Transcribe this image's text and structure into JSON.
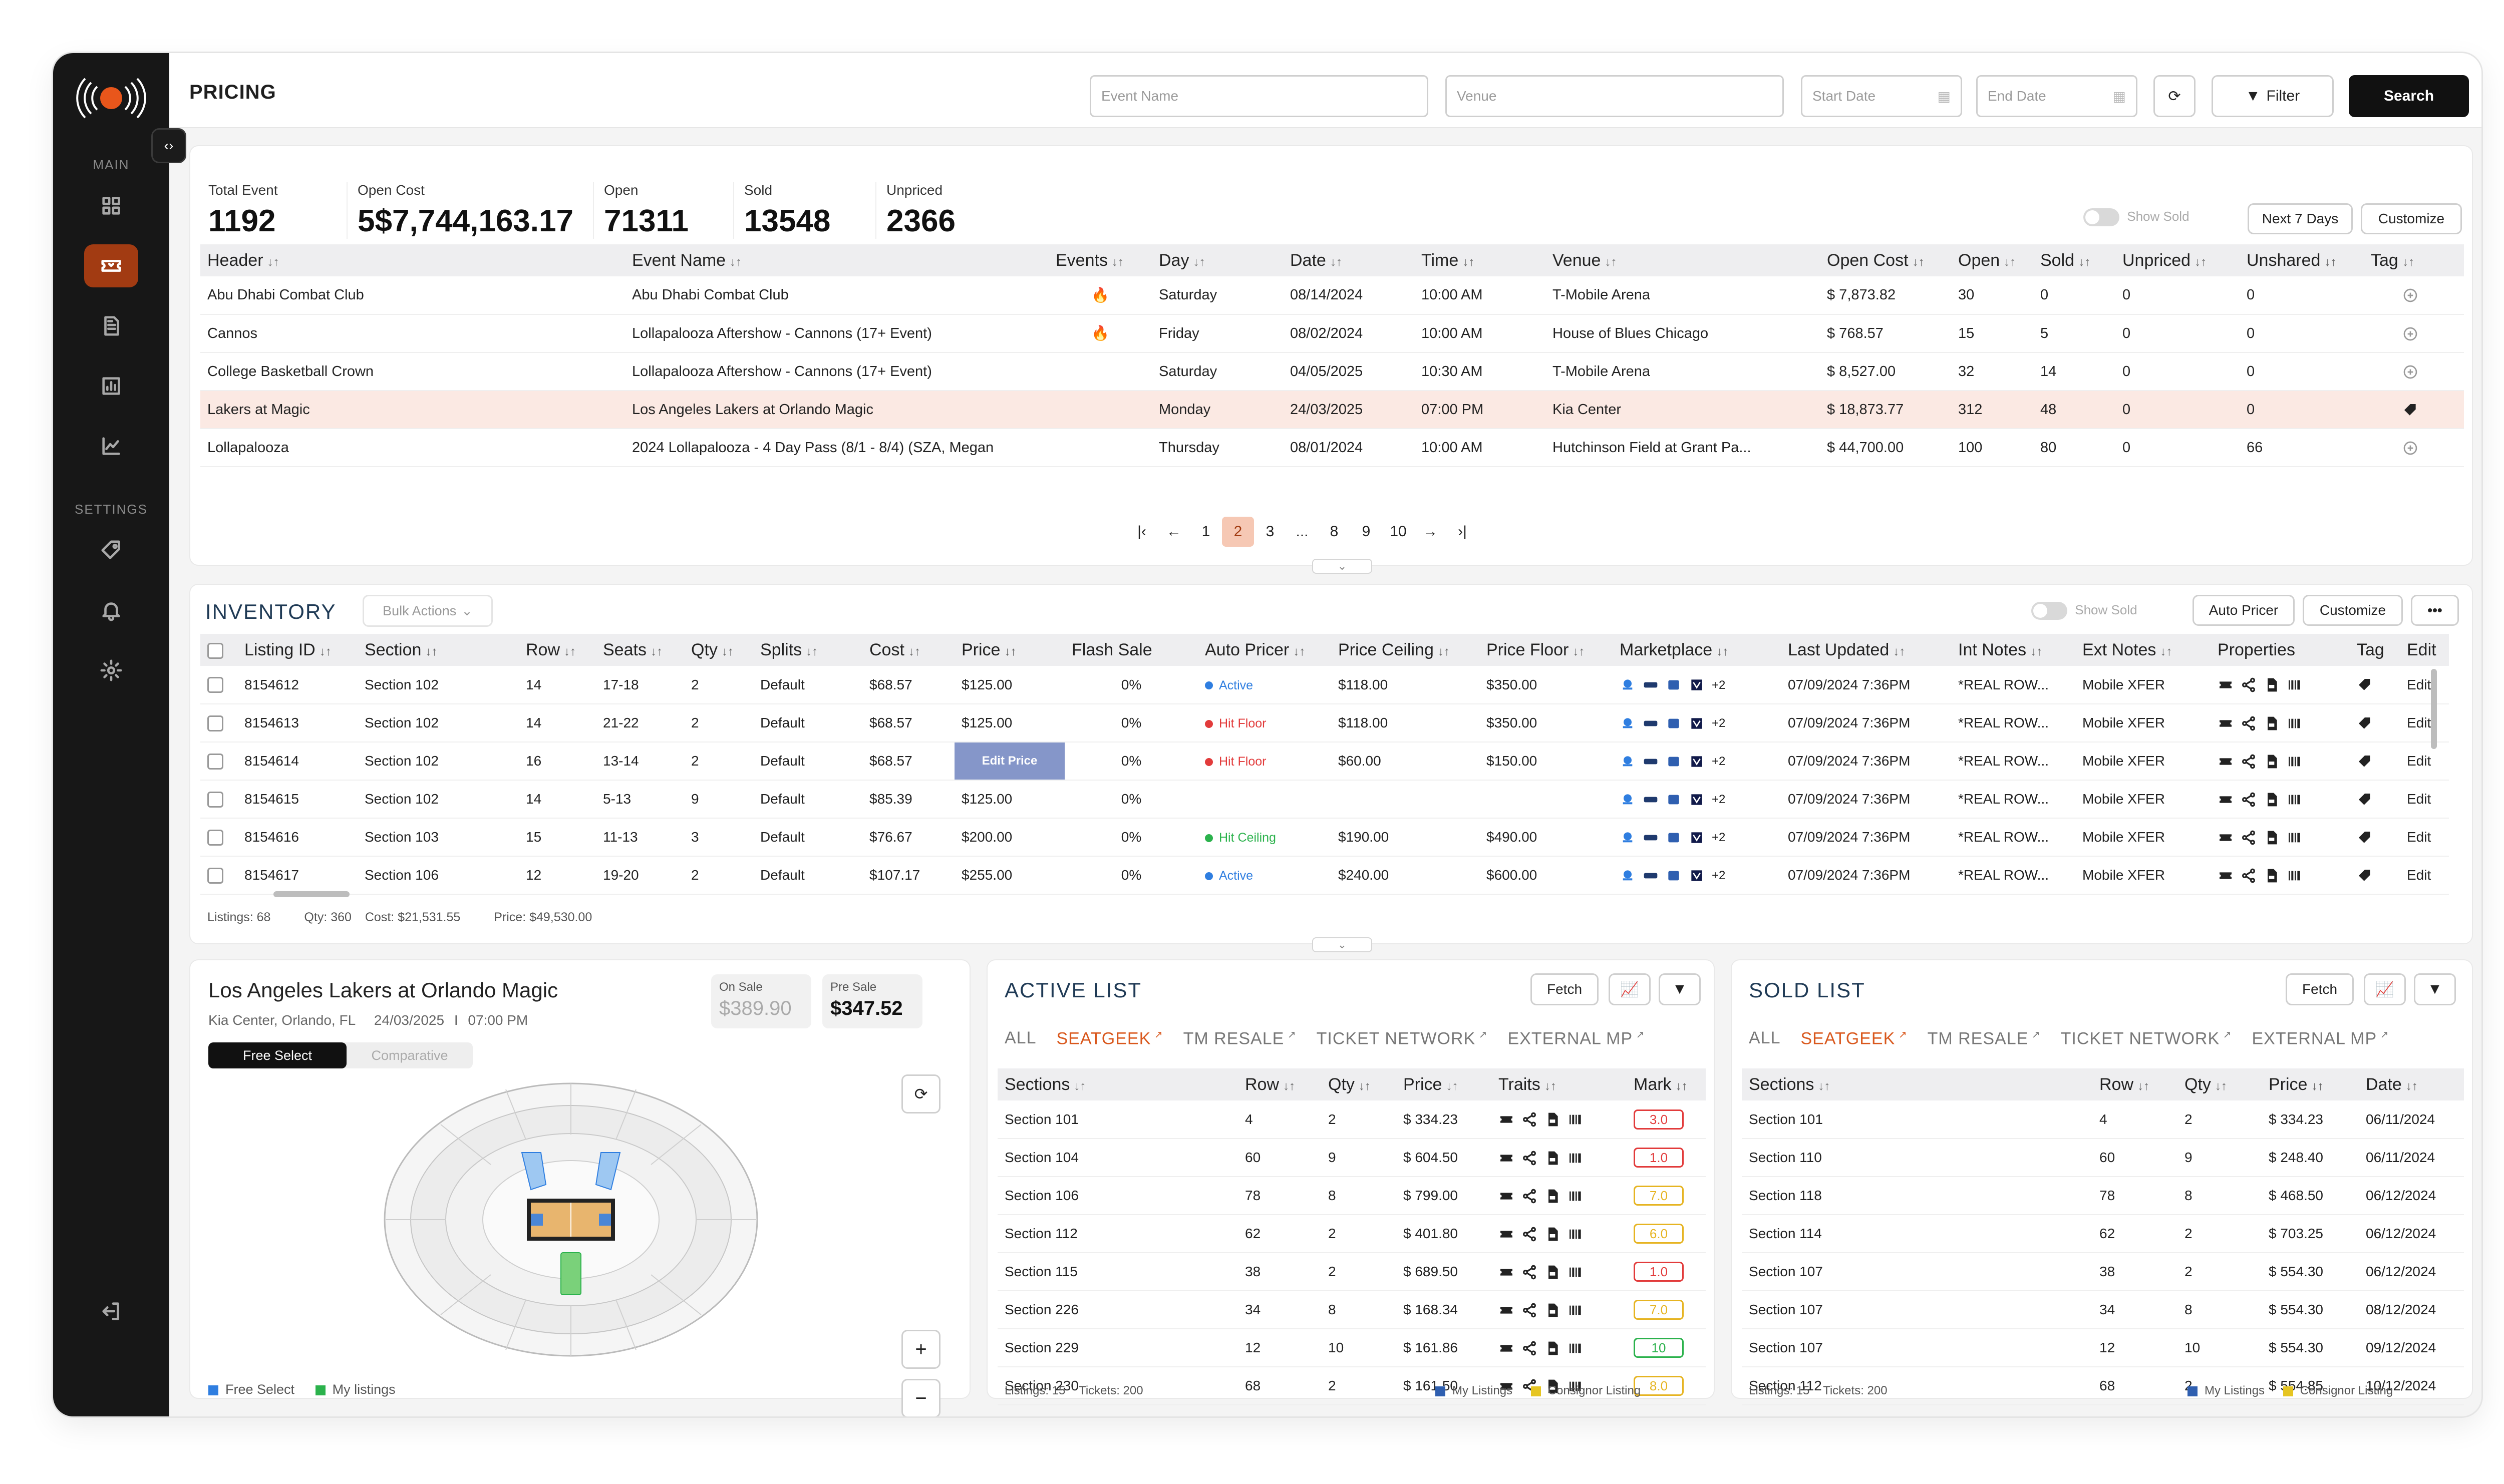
{
  "header": {
    "title": "PRICING",
    "event_placeholder": "Event Name",
    "venue_placeholder": "Venue",
    "start_date": "Start Date",
    "end_date": "End Date",
    "filter_label": "Filter",
    "search_label": "Search"
  },
  "sidebar": {
    "main_label": "MAIN",
    "settings_label": "SETTINGS"
  },
  "stats": [
    {
      "label": "Total Event",
      "value": "1192"
    },
    {
      "label": "Open Cost",
      "value": "5$7,744,163.17"
    },
    {
      "label": "Open",
      "value": "71311"
    },
    {
      "label": "Sold",
      "value": "13548"
    },
    {
      "label": "Unpriced",
      "value": "2366"
    }
  ],
  "pricing_controls": {
    "show_sold": "Show Sold",
    "next7": "Next 7 Days",
    "customize": "Customize"
  },
  "events_table": {
    "columns": [
      "Header",
      "Event Name",
      "Events",
      "Day",
      "Date",
      "Time",
      "Venue",
      "Open Cost",
      "Open",
      "Sold",
      "Unpriced",
      "Unshared",
      "Tag"
    ],
    "rows": [
      [
        "Abu Dhabi Combat Club",
        "Abu Dhabi Combat Club",
        "🔥",
        "Saturday",
        "08/14/2024",
        "10:00 AM",
        "T-Mobile Arena",
        "$ 7,873.82",
        "30",
        "0",
        "0",
        "0"
      ],
      [
        "Cannos",
        "Lollapalooza Aftershow - Cannons (17+ Event)",
        "🔥",
        "Friday",
        "08/02/2024",
        "10:00 AM",
        "House of Blues Chicago",
        "$ 768.57",
        "15",
        "5",
        "0",
        "0"
      ],
      [
        "College Basketball Crown",
        "Lollapalooza Aftershow - Cannons (17+ Event)",
        "",
        "Saturday",
        "04/05/2025",
        "10:30 AM",
        "T-Mobile Arena",
        "$ 8,527.00",
        "32",
        "14",
        "0",
        "0"
      ],
      [
        "Lakers at Magic",
        "Los Angeles Lakers at Orlando Magic",
        "",
        "Monday",
        "24/03/2025",
        "07:00 PM",
        "Kia Center",
        "$ 18,873.77",
        "312",
        "48",
        "0",
        "0"
      ],
      [
        "Lollapalooza",
        "2024 Lollapalooza - 4 Day Pass (8/1 - 8/4) (SZA, Megan",
        "",
        "Thursday",
        "08/01/2024",
        "10:00 AM",
        "Hutchinson Field at Grant Pa...",
        "$ 44,700.00",
        "100",
        "80",
        "0",
        "66"
      ]
    ],
    "pages": [
      "1",
      "2",
      "3",
      "...",
      "8",
      "9",
      "10"
    ],
    "current_page": "2"
  },
  "inventory": {
    "title": "INVENTORY",
    "bulk_actions": "Bulk Actions",
    "show_sold": "Show Sold",
    "auto_pricer": "Auto Pricer",
    "customize": "Customize",
    "columns": [
      "Listing ID",
      "Section",
      "Row",
      "Seats",
      "Qty",
      "Splits",
      "Cost",
      "Price",
      "Flash Sale",
      "Auto Pricer",
      "Price Ceiling",
      "Price Floor",
      "Marketplace",
      "Last Updated",
      "Int Notes",
      "Ext Notes",
      "Properties",
      "Tag",
      "Edit"
    ],
    "rows": [
      {
        "id": "8154612",
        "section": "Section 102",
        "row": "14",
        "seats": "17-18",
        "qty": "2",
        "splits": "Default",
        "cost": "$68.57",
        "price": "$125.00",
        "flash": "0%",
        "pricer": "Active",
        "pricer_color": "#2f7ee0",
        "ceiling": "$118.00",
        "floor": "$350.00",
        "more": "+2",
        "updated": "07/09/2024 7:36PM",
        "int": "*REAL ROW...",
        "ext": "Mobile XFER",
        "edit": "Edit"
      },
      {
        "id": "8154613",
        "section": "Section 102",
        "row": "14",
        "seats": "21-22",
        "qty": "2",
        "splits": "Default",
        "cost": "$68.57",
        "price": "$125.00",
        "flash": "0%",
        "pricer": "Hit Floor",
        "pricer_color": "#e23b3b",
        "ceiling": "$118.00",
        "floor": "$350.00",
        "more": "+2",
        "updated": "07/09/2024 7:36PM",
        "int": "*REAL ROW...",
        "ext": "Mobile XFER",
        "edit": "Edit"
      },
      {
        "id": "8154614",
        "section": "Section 102",
        "row": "16",
        "seats": "13-14",
        "qty": "2",
        "splits": "Default",
        "cost": "$68.57",
        "price": "Edit Price",
        "flash": "0%",
        "pricer": "Hit Floor",
        "pricer_color": "#e23b3b",
        "ceiling": "$60.00",
        "floor": "$150.00",
        "more": "+2",
        "updated": "07/09/2024 7:36PM",
        "int": "*REAL ROW...",
        "ext": "Mobile XFER",
        "edit": "Edit"
      },
      {
        "id": "8154615",
        "section": "Section 102",
        "row": "14",
        "seats": "5-13",
        "qty": "9",
        "splits": "Default",
        "cost": "$85.39",
        "price": "$125.00",
        "flash": "0%",
        "pricer": "",
        "pricer_color": "",
        "ceiling": "",
        "floor": "",
        "more": "+2",
        "updated": "07/09/2024 7:36PM",
        "int": "*REAL ROW...",
        "ext": "Mobile XFER",
        "edit": "Edit"
      },
      {
        "id": "8154616",
        "section": "Section 103",
        "row": "15",
        "seats": "11-13",
        "qty": "3",
        "splits": "Default",
        "cost": "$76.67",
        "price": "$200.00",
        "flash": "0%",
        "pricer": "Hit Ceiling",
        "pricer_color": "#2bb24c",
        "ceiling": "$190.00",
        "floor": "$490.00",
        "more": "+2",
        "updated": "07/09/2024 7:36PM",
        "int": "*REAL ROW...",
        "ext": "Mobile XFER",
        "edit": "Edit"
      },
      {
        "id": "8154617",
        "section": "Section 106",
        "row": "12",
        "seats": "19-20",
        "qty": "2",
        "splits": "Default",
        "cost": "$107.17",
        "price": "$255.00",
        "flash": "0%",
        "pricer": "Active",
        "pricer_color": "#2f7ee0",
        "ceiling": "$240.00",
        "floor": "$600.00",
        "more": "+2",
        "updated": "07/09/2024 7:36PM",
        "int": "*REAL ROW...",
        "ext": "Mobile XFER",
        "edit": "Edit"
      }
    ],
    "footer": {
      "listings": "Listings: 68",
      "qty": "Qty: 360",
      "cost": "Cost: $21,531.55",
      "price": "Price: $49,530.00"
    }
  },
  "event_card": {
    "title": "Los Angeles Lakers at Orlando Magic",
    "venue": "Kia Center, Orlando, FL",
    "date": "24/03/2025",
    "sep": "I",
    "time": "07:00 PM",
    "on_sale_label": "On Sale",
    "on_sale_value": "$389.90",
    "pre_sale_label": "Pre Sale",
    "pre_sale_value": "$347.52",
    "tab_free": "Free Select",
    "tab_compare": "Comparative",
    "legend_free": "Free Select",
    "legend_mine": "My listings"
  },
  "active_list": {
    "title": "ACTIVE LIST",
    "fetch": "Fetch",
    "tabs": [
      "ALL",
      "SEATGEEK",
      "TM RESALE",
      "TICKET NETWORK",
      "EXTERNAL MP"
    ],
    "columns": [
      "Sections",
      "Row",
      "Qty",
      "Price",
      "Traits",
      "Mark"
    ],
    "rows": [
      [
        "Section 101",
        "4",
        "2",
        "$ 334.23",
        "3.0",
        "#e23b3b"
      ],
      [
        "Section 104",
        "60",
        "9",
        "$ 604.50",
        "1.0",
        "#e23b3b"
      ],
      [
        "Section 106",
        "78",
        "8",
        "$ 799.00",
        "7.0",
        "#e6b422"
      ],
      [
        "Section 112",
        "62",
        "2",
        "$ 401.80",
        "6.0",
        "#e6b422"
      ],
      [
        "Section 115",
        "38",
        "2",
        "$ 689.50",
        "1.0",
        "#e23b3b"
      ],
      [
        "Section 226",
        "34",
        "8",
        "$ 168.34",
        "7.0",
        "#e6b422"
      ],
      [
        "Section 229",
        "12",
        "10",
        "$ 161.86",
        "10",
        "#2bb24c"
      ],
      [
        "Section 230",
        "68",
        "2",
        "$ 161.50",
        "8.0",
        "#e6b422"
      ]
    ],
    "footer_listings": "Listings: 15",
    "footer_tickets": "Tickets: 200",
    "legend_mine": "My Listings",
    "legend_consignor": "Consignor Listing"
  },
  "sold_list": {
    "title": "SOLD LIST",
    "fetch": "Fetch",
    "tabs": [
      "ALL",
      "SEATGEEK",
      "TM RESALE",
      "TICKET NETWORK",
      "EXTERNAL MP"
    ],
    "columns": [
      "Sections",
      "Row",
      "Qty",
      "Price",
      "Date"
    ],
    "rows": [
      [
        "Section 101",
        "4",
        "2",
        "$ 334.23",
        "06/11/2024"
      ],
      [
        "Section 110",
        "60",
        "9",
        "$ 248.40",
        "06/11/2024"
      ],
      [
        "Section 118",
        "78",
        "8",
        "$ 468.50",
        "06/12/2024"
      ],
      [
        "Section 114",
        "62",
        "2",
        "$ 703.25",
        "06/12/2024"
      ],
      [
        "Section 107",
        "38",
        "2",
        "$ 554.30",
        "06/12/2024"
      ],
      [
        "Section 107",
        "34",
        "8",
        "$ 554.30",
        "08/12/2024"
      ],
      [
        "Section 107",
        "12",
        "10",
        "$ 554.30",
        "09/12/2024"
      ],
      [
        "Section 112",
        "68",
        "2",
        "$ 554.85",
        "10/12/2024"
      ]
    ],
    "footer_listings": "Listings: 15",
    "footer_tickets": "Tickets: 200",
    "legend_mine": "My Listings",
    "legend_consignor": "Consignor Listing"
  },
  "colors": {
    "accent": "#d9581d",
    "sidebar": "#171717",
    "active_nav": "#a23b12"
  }
}
